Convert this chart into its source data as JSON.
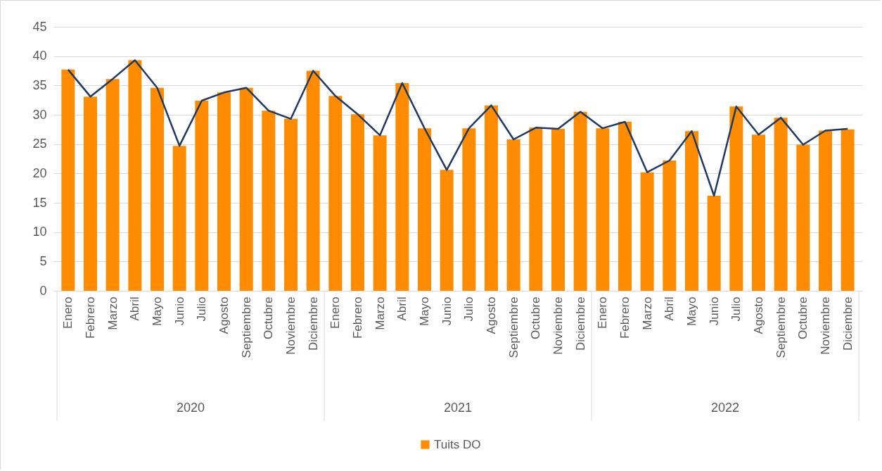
{
  "chart_data": {
    "type": "bar",
    "categories": [
      "Enero",
      "Febrero",
      "Marzo",
      "Abril",
      "Mayo",
      "Junio",
      "Julio",
      "Agosto",
      "Septiembre",
      "Octubre",
      "Noviembre",
      "Diciembre",
      "Enero",
      "Febrero",
      "Marzo",
      "Abril",
      "Mayo",
      "Junio",
      "Julio",
      "Agosto",
      "Septiembre",
      "Octubre",
      "Noviembre",
      "Diciembre",
      "Enero",
      "Febrero",
      "Marzo",
      "Abril",
      "Mayo",
      "Junio",
      "Julio",
      "Agosto",
      "Septiembre",
      "Octubre",
      "Noviembre",
      "Diciembre"
    ],
    "series": [
      {
        "name": "Tuits DO",
        "color": "#ff8c00",
        "values": [
          37.7,
          33.1,
          36.1,
          39.3,
          34.6,
          24.7,
          32.4,
          33.8,
          34.6,
          30.7,
          29.3,
          37.5,
          33.2,
          30.1,
          26.5,
          35.4,
          27.7,
          20.6,
          27.7,
          31.6,
          25.8,
          27.8,
          27.6,
          30.5,
          27.7,
          28.8,
          20.2,
          22.2,
          27.2,
          16.2,
          31.4,
          26.6,
          29.5,
          24.9,
          27.3,
          27.5
        ]
      },
      {
        "type": "line",
        "color": "#203864",
        "values": [
          37.7,
          33.1,
          36.1,
          39.3,
          34.6,
          24.7,
          32.4,
          33.8,
          34.6,
          30.7,
          29.3,
          37.5,
          33.2,
          30.1,
          26.5,
          35.4,
          27.7,
          20.6,
          27.7,
          31.6,
          25.8,
          27.8,
          27.6,
          30.5,
          27.7,
          28.8,
          20.2,
          22.2,
          27.2,
          16.2,
          31.4,
          26.6,
          29.5,
          24.9,
          27.3,
          27.6
        ]
      }
    ],
    "ylim": [
      0,
      45
    ],
    "yticks": [
      0,
      5,
      10,
      15,
      20,
      25,
      30,
      35,
      40,
      45
    ],
    "grid": "y",
    "legend": "bottom",
    "annotations": [
      "2020",
      "2021",
      "2022"
    ]
  }
}
